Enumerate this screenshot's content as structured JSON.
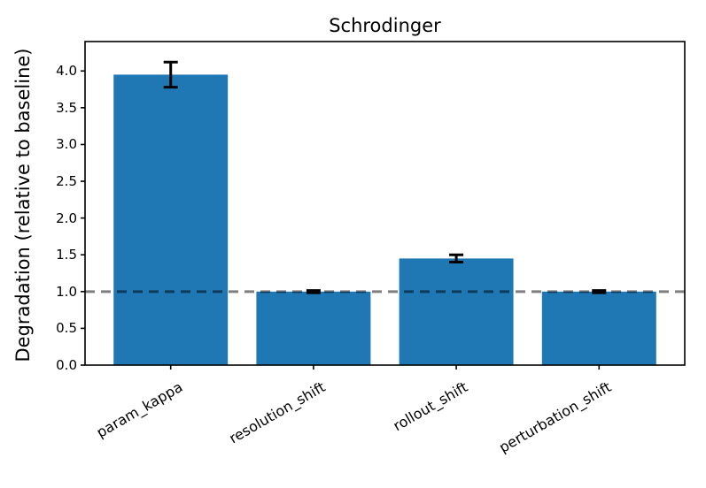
{
  "chart_data": {
    "type": "bar",
    "title": "Schrodinger",
    "ylabel": "Degradation (relative to baseline)",
    "xlabel": "",
    "categories": [
      "param_kappa",
      "resolution_shift",
      "rollout_shift",
      "perturbation_shift"
    ],
    "values": [
      3.95,
      1.0,
      1.45,
      1.0
    ],
    "errors": [
      0.17,
      0.015,
      0.05,
      0.015
    ],
    "baseline_y": 1.0,
    "baseline_style": "dashed",
    "baseline_color": "rgba(0,0,0,0.5)",
    "bar_color": "#1f77b4",
    "error_color": "#000000",
    "axis_color": "#000000",
    "ylim": [
      0,
      4.4
    ],
    "xlim": [
      -0.6,
      3.6
    ],
    "bar_width": 0.8,
    "yticks": [
      0.0,
      0.5,
      1.0,
      1.5,
      2.0,
      2.5,
      3.0,
      3.5,
      4.0
    ],
    "ytick_labels": [
      "0.0",
      "0.5",
      "1.0",
      "1.5",
      "2.0",
      "2.5",
      "3.0",
      "3.5",
      "4.0"
    ],
    "xtick_rotation_deg": 30,
    "grid": false,
    "legend": false
  }
}
